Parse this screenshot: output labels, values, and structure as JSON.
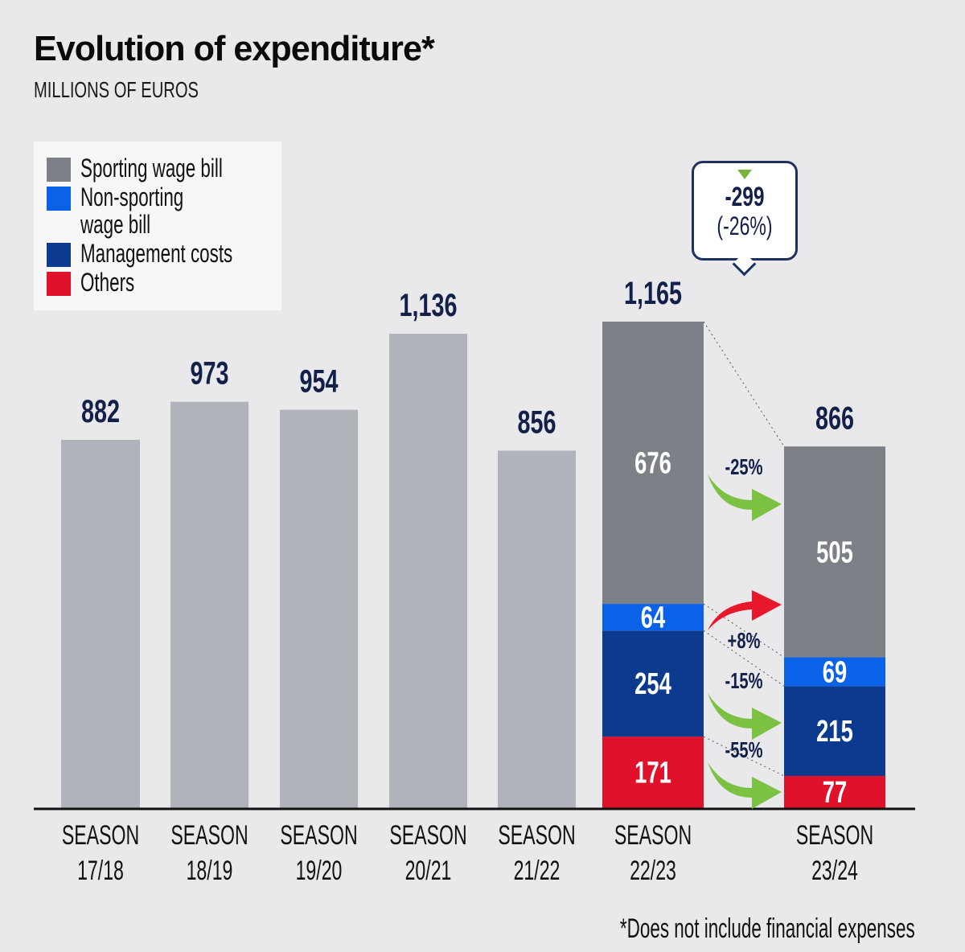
{
  "chart_data": {
    "type": "bar",
    "title": "Evolution of expenditure*",
    "subtitle": "MILLIONS OF EUROS",
    "footnote": "*Does not include financial expenses",
    "xlabel": "",
    "ylabel": "",
    "ylim": [
      0,
      1200
    ],
    "grid": false,
    "legend_position": "top-left",
    "categories": [
      {
        "line1": "SEASON",
        "line2": "17/18"
      },
      {
        "line1": "SEASON",
        "line2": "18/19"
      },
      {
        "line1": "SEASON",
        "line2": "19/20"
      },
      {
        "line1": "SEASON",
        "line2": "20/21"
      },
      {
        "line1": "SEASON",
        "line2": "21/22"
      },
      {
        "line1": "SEASON",
        "line2": "22/23"
      },
      {
        "line1": "SEASON",
        "line2": "23/24"
      }
    ],
    "totals": [
      882,
      973,
      954,
      1136,
      856,
      1165,
      866
    ],
    "total_labels": [
      "882",
      "973",
      "954",
      "1,136",
      "856",
      "1,165",
      "866"
    ],
    "legend": [
      {
        "name": "Sporting wage bill",
        "color": "#7d8087"
      },
      {
        "name": "Non-sporting wage bill",
        "color": "#0a62e8"
      },
      {
        "name": "Management costs",
        "color": "#0c3a8e"
      },
      {
        "name": "Others",
        "color": "#e0112a"
      }
    ],
    "series": [
      {
        "name": "Sporting wage bill",
        "values": [
          null,
          null,
          null,
          null,
          null,
          676,
          505
        ]
      },
      {
        "name": "Non-sporting wage bill",
        "values": [
          null,
          null,
          null,
          null,
          null,
          64,
          69
        ]
      },
      {
        "name": "Management costs",
        "values": [
          null,
          null,
          null,
          null,
          null,
          254,
          215
        ]
      },
      {
        "name": "Others",
        "values": [
          null,
          null,
          null,
          null,
          null,
          171,
          77
        ]
      }
    ],
    "changes": [
      {
        "series": "Sporting wage bill",
        "label": "-25%",
        "direction": "down"
      },
      {
        "series": "Non-sporting wage bill",
        "label": "+8%",
        "direction": "up"
      },
      {
        "series": "Management costs",
        "label": "-15%",
        "direction": "down"
      },
      {
        "series": "Others",
        "label": "-55%",
        "direction": "down"
      }
    ],
    "total_change": {
      "value": "-299",
      "percent": "(-26%)"
    },
    "colors": {
      "plain_bar": "#b0b4ba",
      "label": "#13214a",
      "down_arrow": "#7cc242",
      "up_arrow": "#e8182b",
      "axis": "#111111"
    }
  }
}
